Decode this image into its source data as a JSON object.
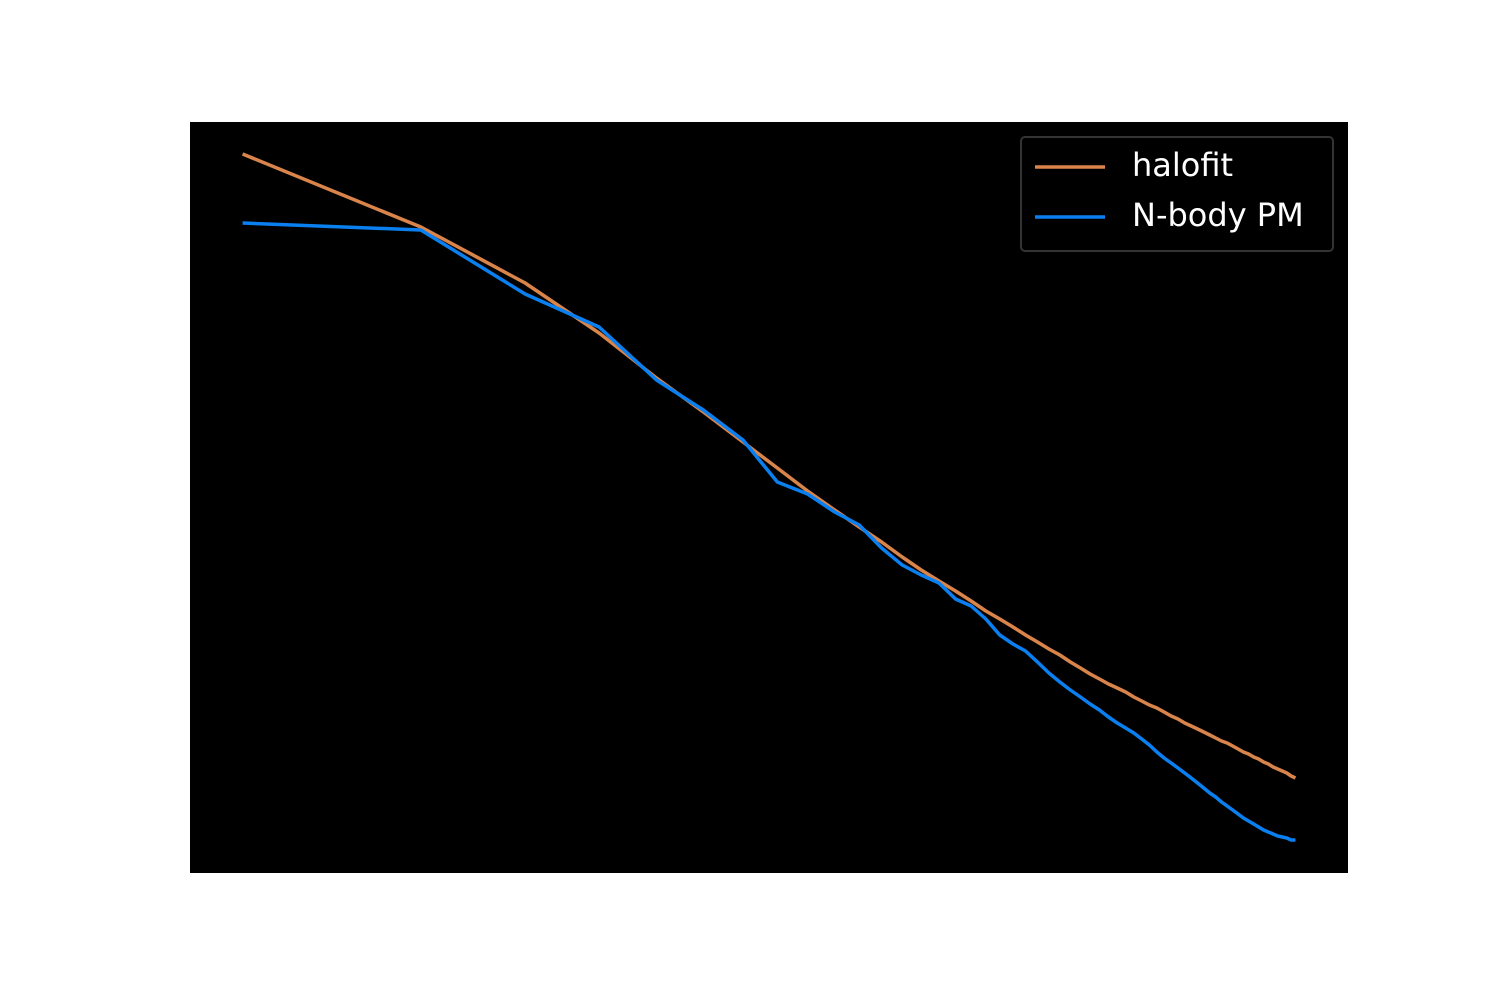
{
  "chart_data": {
    "type": "line",
    "xscale": "log",
    "xlim": [
      0.815,
      73.6
    ],
    "ylim": [
      0,
      751
    ],
    "x": [
      1,
      2,
      3,
      4,
      5,
      6,
      7,
      8,
      9,
      10,
      11,
      12,
      13,
      14,
      15,
      16,
      17,
      18,
      19,
      20,
      21,
      22,
      23,
      24,
      25,
      26,
      27,
      28,
      29,
      30,
      31,
      32,
      33,
      34,
      35,
      36,
      37,
      38,
      39,
      40,
      41,
      42,
      43,
      44,
      45,
      46,
      47,
      48,
      49,
      50,
      51,
      52,
      53,
      54,
      55,
      56,
      57,
      58,
      59,
      60
    ],
    "series": [
      {
        "name": "halofit",
        "color": "#d9844a",
        "values": [
          719,
          646,
          590,
          540,
          495,
          461,
          431,
          405,
          382,
          363,
          346,
          331,
          316,
          303,
          292,
          282,
          272,
          262,
          254,
          246,
          238,
          231,
          224,
          218,
          211,
          205,
          199,
          194,
          189,
          185,
          181,
          176,
          172,
          168,
          165,
          161,
          157,
          154,
          150,
          147,
          144,
          141,
          138,
          135,
          132,
          130,
          127,
          124,
          121,
          119,
          116,
          114,
          111,
          109,
          106,
          104,
          102,
          100,
          97,
          95
        ]
      },
      {
        "name": "N-body PM",
        "color": "#0a7ff0",
        "values": [
          650,
          643,
          579,
          546,
          493,
          463,
          433,
          391,
          379,
          361,
          348,
          325,
          308,
          298,
          290,
          274,
          267,
          254,
          238,
          229,
          222,
          211,
          200,
          191,
          183,
          176,
          169,
          163,
          156,
          150,
          145,
          140,
          134,
          128,
          121,
          115,
          110,
          105,
          100,
          95,
          90,
          85,
          80,
          76,
          71,
          67,
          63,
          59,
          55,
          52,
          49,
          46,
          43,
          41,
          39,
          37,
          36,
          35,
          33,
          33
        ]
      }
    ],
    "axes_background": "#000000",
    "legend": "upper right"
  }
}
